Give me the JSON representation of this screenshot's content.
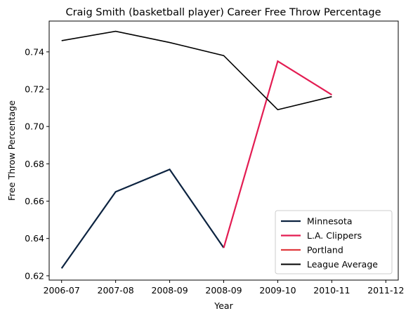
{
  "chart_data": {
    "type": "line",
    "title": "Craig Smith (basketball player) Career Free Throw Percentage",
    "xlabel": "Year",
    "ylabel": "Free Throw Percentage",
    "categories": [
      "2006-07",
      "2007-08",
      "2008-09",
      "2008-09",
      "2009-10",
      "2010-11",
      "2011-12"
    ],
    "xlim": [
      -0.23,
      6.23
    ],
    "ylim": [
      0.6177,
      0.7565
    ],
    "yticks": [
      0.62,
      0.64,
      0.66,
      0.68,
      0.7,
      0.72,
      0.74
    ],
    "ytick_labels": [
      "0.62",
      "0.64",
      "0.66",
      "0.68",
      "0.70",
      "0.72",
      "0.74"
    ],
    "grid": false,
    "legend_position": "lower-right",
    "series": [
      {
        "name": "Minnesota",
        "color": "#0c2340",
        "points": [
          [
            0,
            0.624
          ],
          [
            1,
            0.665
          ],
          [
            2,
            0.677
          ],
          [
            3,
            0.635
          ]
        ]
      },
      {
        "name": "L.A. Clippers",
        "color": "#e31c52",
        "points": [
          [
            3,
            0.635
          ],
          [
            4,
            0.735
          ],
          [
            5,
            0.717
          ]
        ]
      },
      {
        "name": "Portland",
        "color": "#e03a3e",
        "points": []
      },
      {
        "name": "League Average",
        "color": "#000000",
        "points": [
          [
            0,
            0.746
          ],
          [
            1,
            0.751
          ],
          [
            2,
            0.745
          ],
          [
            3,
            0.738
          ],
          [
            4,
            0.709
          ],
          [
            5,
            0.716
          ]
        ]
      }
    ]
  }
}
